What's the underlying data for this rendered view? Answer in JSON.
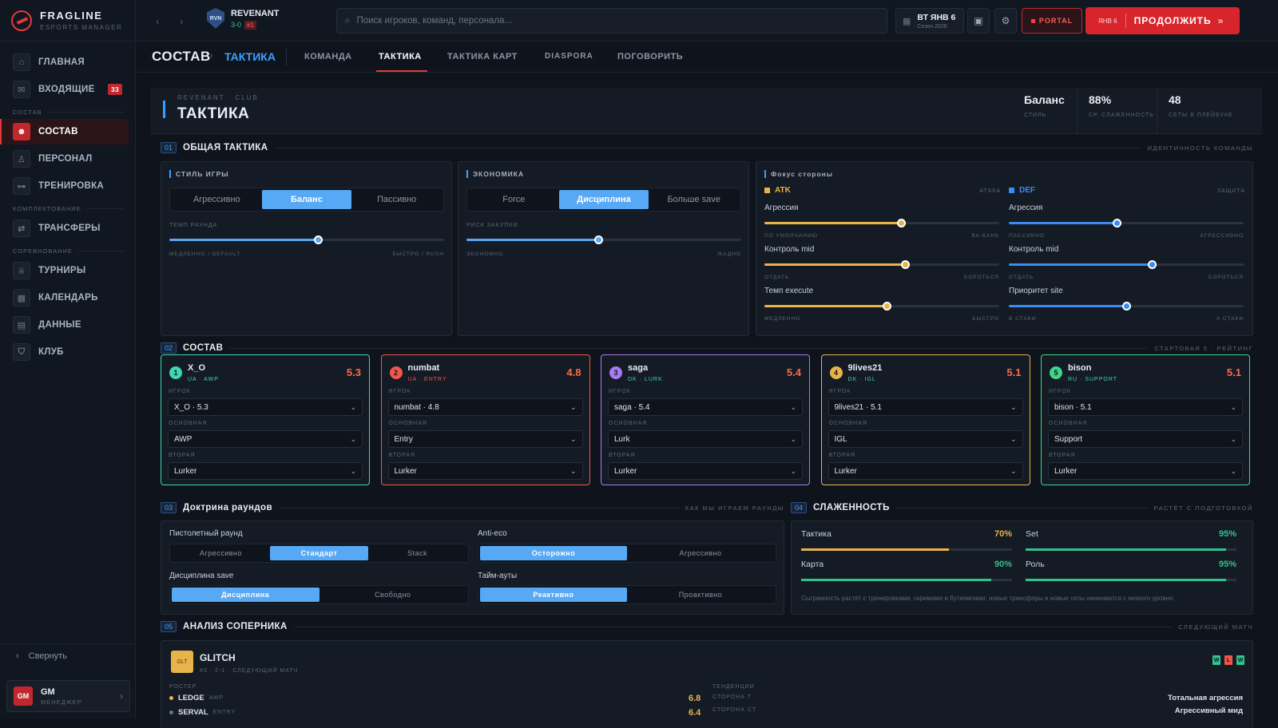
{
  "app": {
    "name": "FRAGLINE",
    "subtitle": "ESPORTS MANAGER"
  },
  "sidebar": {
    "items": [
      {
        "label": "ГЛАВНАЯ",
        "icon": "home-icon"
      },
      {
        "label": "ВХОДЯЩИЕ",
        "icon": "mail-icon",
        "badge": "33"
      }
    ],
    "sections": [
      {
        "label": "СОСТАВ",
        "items": [
          {
            "label": "СОСТАВ",
            "icon": "users-icon",
            "active": true
          },
          {
            "label": "ПЕРСОНАЛ",
            "icon": "person-icon"
          },
          {
            "label": "ТРЕНИРОВКА",
            "icon": "dumbbell-icon"
          }
        ]
      },
      {
        "label": "КОМПЛЕКТОВАНИЕ",
        "items": [
          {
            "label": "ТРАНСФЕРЫ",
            "icon": "transfer-icon"
          }
        ]
      },
      {
        "label": "СОРЕВНОВАНИЕ",
        "items": [
          {
            "label": "ТУРНИРЫ",
            "icon": "trophy-icon"
          },
          {
            "label": "КАЛЕНДАРЬ",
            "icon": "calendar-icon"
          },
          {
            "label": "ДАННЫЕ",
            "icon": "data-icon"
          },
          {
            "label": "КЛУБ",
            "icon": "shield-icon"
          }
        ]
      }
    ],
    "collapse_label": "Свернуть",
    "user": {
      "initials": "GM",
      "name": "GM",
      "role": "МЕНЕДЖЕР"
    }
  },
  "topbar": {
    "team": {
      "logo": "RVN",
      "name": "REVENANT",
      "record": "3-0",
      "rank": "#1"
    },
    "search_placeholder": "Поиск игроков, команд, персонала...",
    "date": {
      "day": "ВТ ЯНВ 6",
      "season": "Сезон 2026"
    },
    "portal_label": "PORTAL",
    "continue": {
      "date": "ЯНВ 6",
      "label": "ПРОДОЛЖИТЬ"
    }
  },
  "subnav": {
    "breadcrumb": [
      "СОСТАВ",
      "ТАКТИКА"
    ],
    "tabs": [
      "КОМАНДА",
      "ТАКТИКА",
      "ТАКТИКА КАРТ",
      "DIASPORA",
      "ПОГОВОРИТЬ"
    ],
    "active_tab": 1
  },
  "header": {
    "sub": "REVENANT · CLUB",
    "title": "ТАКТИКА",
    "stats": [
      {
        "value": "Баланс",
        "label": "СТИЛЬ"
      },
      {
        "value": "88%",
        "label": "СР. СЛАЖЕННОСТЬ"
      },
      {
        "value": "48",
        "label": "СЕТЫ В ПЛЕЙБУКЕ"
      }
    ]
  },
  "sections": {
    "s1": {
      "no": "01",
      "title": "ОБЩАЯ ТАКТИКА",
      "right": "ИДЕНТИЧНОСТЬ КОМАНДЫ"
    },
    "s2": {
      "no": "02",
      "title": "СОСТАВ",
      "right": "СТАРТОВАЯ 5 · РЕЙТИНГ"
    },
    "s3": {
      "no": "03",
      "title": "Доктрина раундов",
      "right": "КАК МЫ ИГРАЕМ РАУНДЫ"
    },
    "s4": {
      "no": "04",
      "title": "СЛАЖЕННОСТЬ",
      "right": "РАСТЁТ С ПОДГОТОВКОЙ"
    },
    "s5": {
      "no": "05",
      "title": "АНАЛИЗ СОПЕРНИКА",
      "right": "СЛЕДУЮЩИЙ МАТЧ"
    }
  },
  "style": {
    "label": "СТИЛЬ ИГРЫ",
    "options": [
      "Агрессивно",
      "Баланс",
      "Пассивно"
    ],
    "selected": 1,
    "slider": {
      "label": "ТЕМП РАУНДА",
      "value": 0.54,
      "left": "МЕДЛЕННО / DEFAULT",
      "right": "БЫСТРО / RUSH"
    }
  },
  "economy": {
    "label": "ЭКОНОМИКА",
    "options": [
      "Force",
      "Дисциплина",
      "Больше save"
    ],
    "selected": 1,
    "slider": {
      "label": "РИСК ЗАКУПКИ",
      "value": 0.48,
      "left": "ЭКОНОМНО",
      "right": "ЖАДНО"
    }
  },
  "focus": {
    "label": "Фокус стороны",
    "atk": {
      "title": "ATK",
      "right": "АТАКА",
      "color": "#e8b44a",
      "sliders": [
        {
          "name": "Агрессия",
          "value": 0.58,
          "left": "ПО УМОЛЧАНИЮ",
          "right": "ВА-БАНК"
        },
        {
          "name": "Контроль mid",
          "value": 0.6,
          "left": "ОТДАТЬ",
          "right": "БОРОТЬСЯ"
        },
        {
          "name": "Темп execute",
          "value": 0.52,
          "left": "МЕДЛЕННО",
          "right": "БЫСТРО"
        }
      ]
    },
    "def": {
      "title": "DEF",
      "right": "ЗАЩИТА",
      "color": "#3a8cf0",
      "sliders": [
        {
          "name": "Агрессия",
          "value": 0.46,
          "left": "ПАССИВНО",
          "right": "АГРЕССИВНО"
        },
        {
          "name": "Контроль mid",
          "value": 0.61,
          "left": "ОТДАТЬ",
          "right": "БОРОТЬСЯ"
        },
        {
          "name": "Приоритет site",
          "value": 0.5,
          "left": "В СТАКИ",
          "right": "А СТАКИ"
        }
      ]
    }
  },
  "roster": {
    "labels": {
      "player": "ИГРОК",
      "main": "ОСНОВНАЯ",
      "second": "ВТОРАЯ"
    },
    "players": [
      {
        "n": "1",
        "name": "X_O",
        "meta": "UA · AWP",
        "rating": "5.3",
        "player": "X_O · 5.3",
        "main": "AWP",
        "second": "Lurker",
        "color": "#3fd6b2",
        "meta_color": "#3fd6b2",
        "rating_color": "#ff6b4a"
      },
      {
        "n": "2",
        "name": "numbat",
        "meta": "UA · ENTRY",
        "rating": "4.8",
        "player": "numbat · 4.8",
        "main": "Entry",
        "second": "Lurker",
        "color": "#f2564b",
        "meta_color": "#f2564b",
        "rating_color": "#ff6b4a"
      },
      {
        "n": "3",
        "name": "saga",
        "meta": "DK · LURK",
        "rating": "5.4",
        "player": "saga · 5.4",
        "main": "Lurk",
        "second": "Lurker",
        "color": "#a77bf0",
        "meta_color": "#3fd6b2",
        "rating_color": "#ff6b4a"
      },
      {
        "n": "4",
        "name": "9lives21",
        "meta": "DK · IGL",
        "rating": "5.1",
        "player": "9lives21 · 5.1",
        "main": "IGL",
        "second": "Lurker",
        "color": "#e8b44a",
        "meta_color": "#3fd6b2",
        "rating_color": "#ff6b4a"
      },
      {
        "n": "5",
        "name": "bison",
        "meta": "RU · SUPPORT",
        "rating": "5.1",
        "player": "bison · 5.1",
        "main": "Support",
        "second": "Lurker",
        "color": "#3fd68a",
        "meta_color": "#3fd6b2",
        "rating_color": "#ff6b4a"
      }
    ]
  },
  "doctrine": {
    "pistol": {
      "label": "Пистолетный раунд",
      "options": [
        "Агрессивно",
        "Стандарт",
        "Stack"
      ],
      "selected": 1
    },
    "antieco": {
      "label": "Anti-eco",
      "options": [
        "Осторожно",
        "Агрессивно"
      ],
      "selected": 0
    },
    "save": {
      "label": "Дисциплина save",
      "options": [
        "Дисциплина",
        "Свободно"
      ],
      "selected": 0
    },
    "timeouts": {
      "label": "Тайм-ауты",
      "options": [
        "Реактивно",
        "Проактивно"
      ],
      "selected": 0
    }
  },
  "cohesion": {
    "items": [
      {
        "name": "Тактика",
        "value": "70%",
        "fraction": 0.7,
        "color": "#e8b44a"
      },
      {
        "name": "Set",
        "value": "95%",
        "fraction": 0.95,
        "color": "#2fc38a"
      },
      {
        "name": "Карта",
        "value": "90%",
        "fraction": 0.9,
        "color": "#2fc38a"
      },
      {
        "name": "Роль",
        "value": "95%",
        "fraction": 0.95,
        "color": "#2fc38a"
      }
    ],
    "note": "Сыгранность растёт с тренировками, скримами и буткемпами; новые трансферы и новые сеты начинаются с низкого уровня."
  },
  "opponent": {
    "logo": "GLT",
    "name": "GLITCH",
    "meta": "#3 · 2-1 · СЛЕДУЮЩИЙ МАТЧ",
    "form": [
      "W",
      "L",
      "W"
    ],
    "roster_label": "РОСТЕР",
    "players": [
      {
        "name": "LEDGE",
        "role": "AWP",
        "value": "6.8",
        "color": "#e8b44a"
      },
      {
        "name": "SERVAL",
        "role": "ENTRY",
        "value": "6.4",
        "color": "#6b7684"
      }
    ],
    "tendencies_label": "ТЕНДЕНЦИИ",
    "tendencies": [
      {
        "side": "СТОРОНА Т",
        "value": "Тотальная агрессия"
      },
      {
        "side": "СТОРОНА CT",
        "value": "Агрессивный мид"
      }
    ]
  }
}
